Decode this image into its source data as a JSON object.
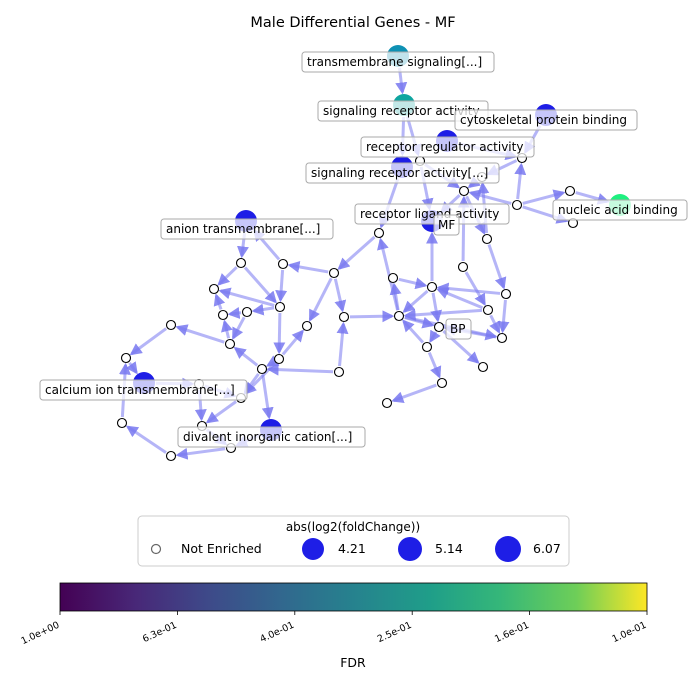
{
  "title": "Male Differential Genes - MF",
  "legend": {
    "title": "abs(log2(foldChange))",
    "entries": [
      {
        "label": "Not Enriched",
        "kind": "open"
      },
      {
        "label": "4.21",
        "kind": "filled"
      },
      {
        "label": "5.14",
        "kind": "filled"
      },
      {
        "label": "6.07",
        "kind": "filled"
      }
    ]
  },
  "colorbar": {
    "label": "FDR",
    "colormap": "viridis",
    "ticks": [
      "1.0e+00",
      "6.3e-01",
      "4.0e-01",
      "2.5e-01",
      "1.6e-01",
      "1.0e-01"
    ]
  },
  "colors": {
    "edge": "#7878f0",
    "enriched_blue": "#1e1ee6",
    "teal": "#0e91b4",
    "cyan_green": "#0fa5a0",
    "green": "#1ef07f"
  },
  "labels": {
    "mf": "MF",
    "bp": "BP",
    "transmembrane": "transmembrane signaling[...]",
    "signaling_receptor": "signaling receptor activity",
    "cytoskeletal": "cytoskeletal protein binding",
    "receptor_regulator": "receptor regulator activity",
    "signaling_receptor_2": "signaling receptor activity[...]",
    "receptor_ligand": "receptor ligand activity",
    "nucleic_acid": "nucleic acid binding",
    "anion": "anion transmembrane[...]",
    "calcium": "calcium ion transmembrane[...]",
    "divalent": "divalent inorganic cation[...]"
  }
}
